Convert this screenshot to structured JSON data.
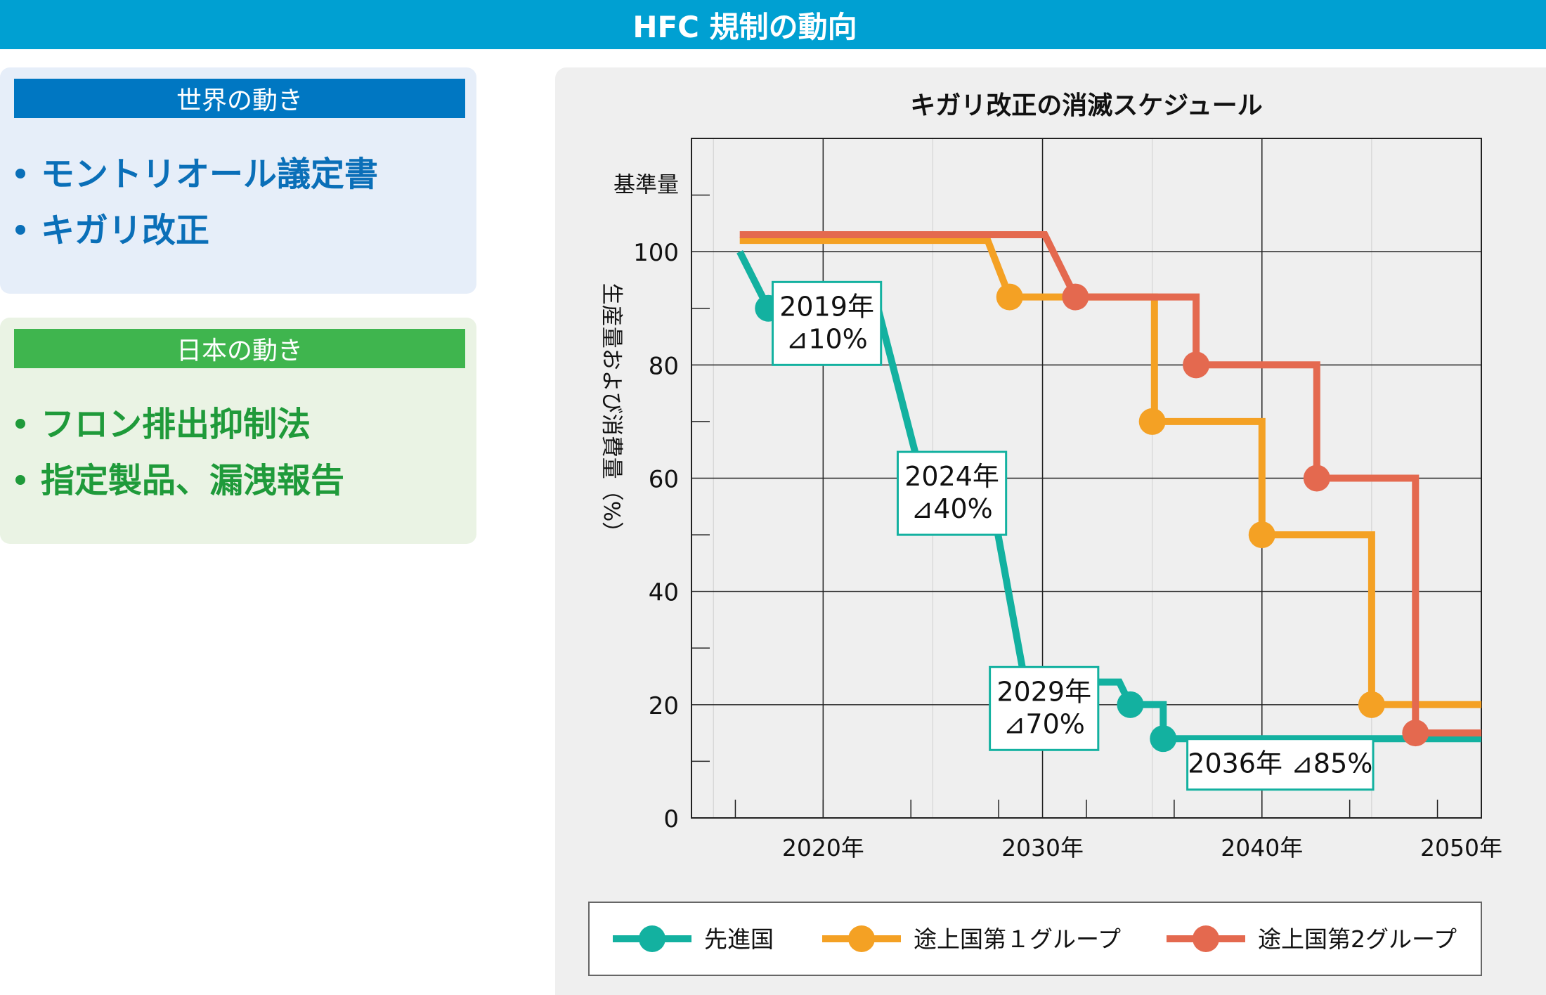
{
  "header": {
    "title": "HFC 規制の動向"
  },
  "world": {
    "heading": "世界の動き",
    "items": [
      "モントリオール議定書",
      "キガリ改正"
    ]
  },
  "japan": {
    "heading": "日本の動き",
    "items": [
      "フロン排出抑制法",
      "指定製品、漏洩報告"
    ]
  },
  "colors": {
    "header_bg": "#00a0d2",
    "world_accent": "#0077c2",
    "japan_accent": "#3fb54e",
    "developed": "#13b1a0",
    "developing1": "#f4a124",
    "developing2": "#e4694f"
  },
  "chart_data": {
    "type": "line",
    "title": "キガリ改正の消滅スケジュール",
    "ylabel": "生産量および消費量（%）",
    "baseline_label": "基準量",
    "xlim": [
      2014,
      2050
    ],
    "ylim": [
      0,
      120
    ],
    "x_ticks": [
      {
        "value": 2020,
        "label": "2020年"
      },
      {
        "value": 2030,
        "label": "2030年"
      },
      {
        "value": 2040,
        "label": "2040年"
      },
      {
        "value": 2050,
        "label": "2050年"
      }
    ],
    "y_ticks": [
      {
        "value": 0,
        "label": "0"
      },
      {
        "value": 20,
        "label": "20"
      },
      {
        "value": 40,
        "label": "40"
      },
      {
        "value": 60,
        "label": "60"
      },
      {
        "value": 80,
        "label": "80"
      },
      {
        "value": 100,
        "label": "100"
      }
    ],
    "grid": true,
    "legend_position": "bottom",
    "series": [
      {
        "name": "先進国",
        "color": "#13b1a0",
        "x": [
          2016.2,
          2016.2,
          2017.5,
          2022.5,
          2024.5,
          2027.5,
          2029.2,
          2033.5,
          2034,
          2035.5,
          2035.5,
          2050
        ],
        "y": [
          100,
          100,
          90,
          90,
          60,
          60,
          24,
          24,
          20,
          20,
          14,
          14
        ],
        "markers": [
          {
            "x": 2017.5,
            "y": 90
          },
          {
            "x": 2024.5,
            "y": 60
          },
          {
            "x": 2029.2,
            "y": 24
          },
          {
            "x": 2034,
            "y": 20
          },
          {
            "x": 2035.5,
            "y": 14
          }
        ]
      },
      {
        "name": "途上国第１グループ",
        "color": "#f4a124",
        "x": [
          2016.2,
          2027.5,
          2028.5,
          2030.1,
          2035.1,
          2035.1,
          2040,
          2040,
          2045,
          2045,
          2050
        ],
        "y": [
          102,
          102,
          92,
          92,
          92,
          70,
          70,
          50,
          50,
          20,
          20
        ],
        "markers": [
          {
            "x": 2028.5,
            "y": 92
          },
          {
            "x": 2035,
            "y": 70
          },
          {
            "x": 2040,
            "y": 50
          },
          {
            "x": 2045,
            "y": 20
          }
        ]
      },
      {
        "name": "途上国第2グループ",
        "color": "#e4694f",
        "x": [
          2016.2,
          2030.1,
          2031.5,
          2037,
          2037,
          2042.5,
          2042.5,
          2047,
          2047,
          2050
        ],
        "y": [
          103,
          103,
          92,
          92,
          80,
          80,
          60,
          60,
          15,
          15
        ],
        "markers": [
          {
            "x": 2031.5,
            "y": 92
          },
          {
            "x": 2037,
            "y": 80
          },
          {
            "x": 2042.5,
            "y": 60
          },
          {
            "x": 2047,
            "y": 15
          }
        ]
      }
    ],
    "annotations": [
      {
        "lines": [
          "2019年",
          "⊿10%"
        ],
        "x": 2017.7,
        "y": 80
      },
      {
        "lines": [
          "2024年",
          "⊿40%"
        ],
        "x": 2023.4,
        "y": 50
      },
      {
        "lines": [
          "2029年",
          "⊿70%"
        ],
        "x": 2027.6,
        "y": 12
      },
      {
        "lines": [
          "2036年 ⊿85%"
        ],
        "x": 2036.6,
        "y": 5
      }
    ]
  }
}
